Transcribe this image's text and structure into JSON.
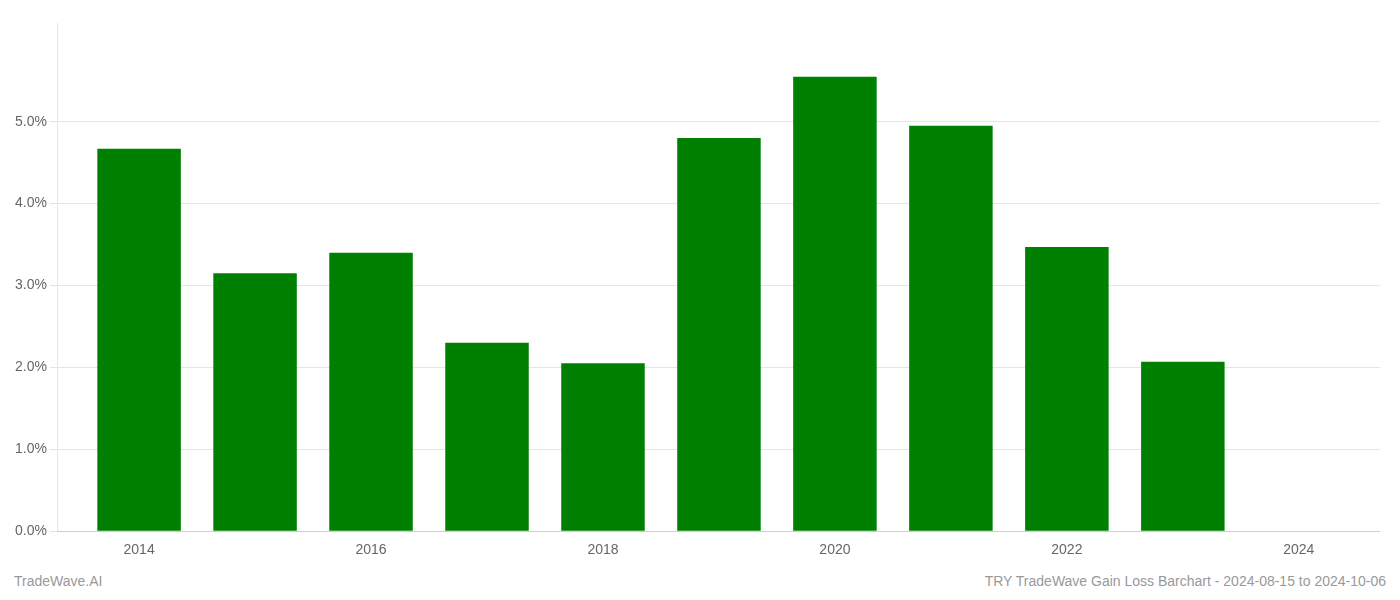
{
  "chart_data": {
    "type": "bar",
    "x": [
      2014,
      2015,
      2016,
      2017,
      2018,
      2019,
      2020,
      2021,
      2022,
      2023
    ],
    "values": [
      0.0467,
      0.0315,
      0.034,
      0.023,
      0.0205,
      0.048,
      0.0555,
      0.0495,
      0.0347,
      0.0207
    ],
    "color": "#008000",
    "xlim": [
      2013.3,
      2024.7
    ],
    "xticks": [
      2014,
      2016,
      2018,
      2020,
      2022,
      2024
    ],
    "ylim": [
      0,
      0.062
    ],
    "yticks": [
      {
        "value": 0.0,
        "label": "0.0%"
      },
      {
        "value": 0.01,
        "label": "1.0%"
      },
      {
        "value": 0.02,
        "label": "2.0%"
      },
      {
        "value": 0.03,
        "label": "3.0%"
      },
      {
        "value": 0.04,
        "label": "4.0%"
      },
      {
        "value": 0.05,
        "label": "5.0%"
      }
    ],
    "grid": "y",
    "annotations": [
      "TradeWave.AI",
      "TRY TradeWave Gain Loss Barchart - 2024-08-15 to 2024-10-06"
    ]
  }
}
